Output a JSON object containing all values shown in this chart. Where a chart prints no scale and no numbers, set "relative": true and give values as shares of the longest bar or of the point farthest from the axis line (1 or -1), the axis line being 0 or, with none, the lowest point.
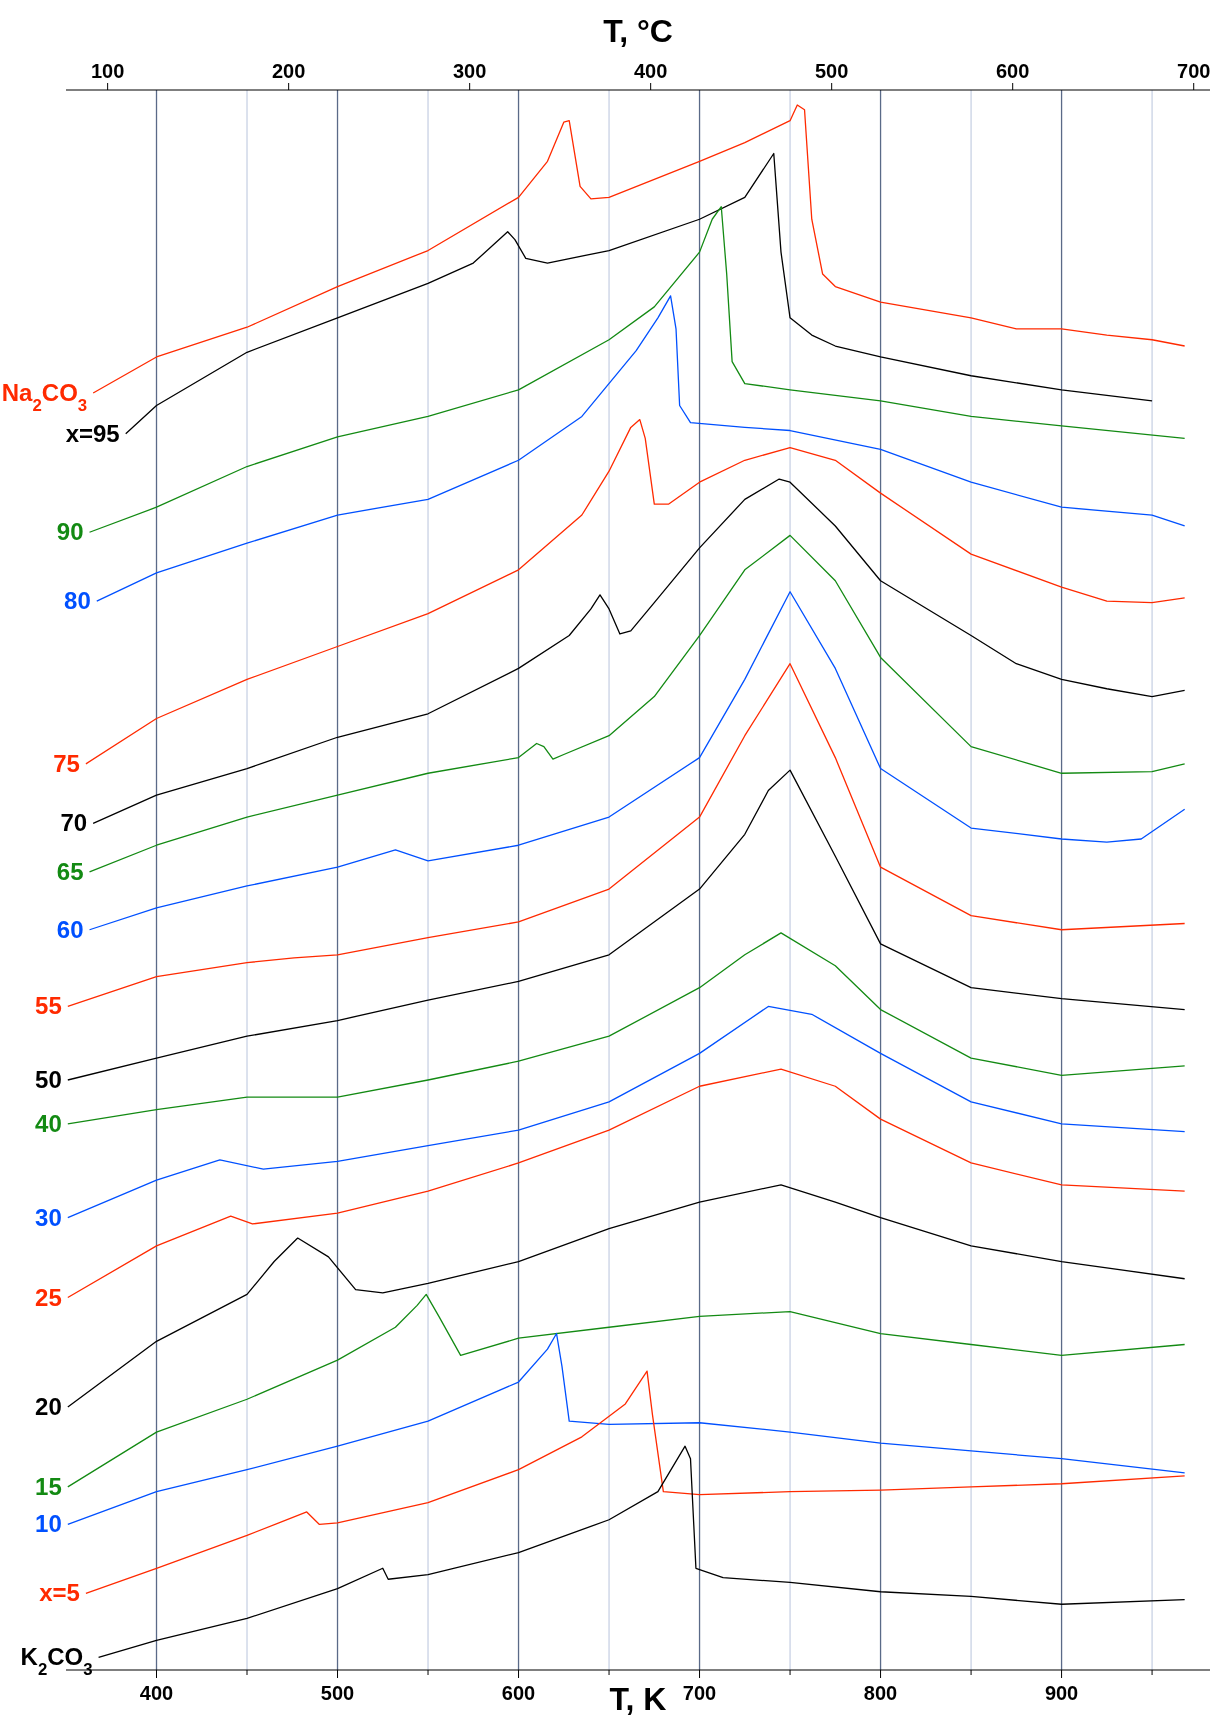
{
  "chart_data": {
    "type": "line",
    "relative": true,
    "xlabel": "T, K",
    "x2label": "T, °C",
    "xlim": [
      350,
      982
    ],
    "xticks": [
      400,
      {
        "value": 450,
        "label": null
      },
      500,
      {
        "value": 550,
        "label": null
      },
      600,
      {
        "value": 650,
        "label": null
      },
      700,
      {
        "value": 750,
        "label": null
      },
      800,
      {
        "value": 850,
        "label": null
      },
      900,
      {
        "value": 950,
        "label": null
      }
    ],
    "x2lim": [
      77,
      709
    ],
    "x2ticks": [
      100,
      200,
      300,
      400,
      500,
      600,
      700
    ],
    "grid": "x",
    "series": [
      {
        "name": "Na$_{2}$CO$_{3}$",
        "color": "#ff2a00",
        "x": [
          365,
          400,
          450,
          500,
          550,
          600,
          616,
          625,
          628,
          634,
          640,
          650,
          700,
          725,
          750,
          754,
          758,
          762,
          768,
          775,
          800,
          850,
          875,
          900,
          925,
          950,
          968
        ],
        "values": [
          0.816,
          0.839,
          0.858,
          0.884,
          0.907,
          0.941,
          0.964,
          0.989,
          0.99,
          0.948,
          0.94,
          0.941,
          0.964,
          0.976,
          0.99,
          1.0,
          0.997,
          0.927,
          0.892,
          0.884,
          0.874,
          0.864,
          0.857,
          0.857,
          0.853,
          0.85,
          0.846
        ]
      },
      {
        "name": "x=95",
        "color": "#000000",
        "x": [
          383,
          400,
          450,
          500,
          550,
          575,
          594,
          598,
          604,
          616,
          650,
          700,
          725,
          741,
          745,
          750,
          762,
          775,
          800,
          850,
          900,
          950
        ],
        "values": [
          0.79,
          0.808,
          0.842,
          0.864,
          0.886,
          0.899,
          0.919,
          0.914,
          0.902,
          0.899,
          0.907,
          0.927,
          0.941,
          0.969,
          0.906,
          0.864,
          0.853,
          0.846,
          0.839,
          0.827,
          0.818,
          0.811
        ]
      },
      {
        "name": "90",
        "color": "#138a13",
        "x": [
          363,
          400,
          450,
          500,
          550,
          600,
          650,
          675,
          700,
          707,
          712,
          715,
          718,
          725,
          750,
          800,
          850,
          900,
          968
        ],
        "values": [
          0.727,
          0.743,
          0.769,
          0.788,
          0.801,
          0.818,
          0.85,
          0.871,
          0.906,
          0.927,
          0.935,
          0.892,
          0.836,
          0.822,
          0.818,
          0.811,
          0.801,
          0.795,
          0.787
        ]
      },
      {
        "name": "80",
        "color": "#0050ff",
        "x": [
          367,
          400,
          450,
          500,
          550,
          600,
          635,
          665,
          677,
          684,
          687,
          689,
          695,
          725,
          750,
          800,
          850,
          900,
          950,
          968
        ],
        "values": [
          0.683,
          0.701,
          0.72,
          0.738,
          0.748,
          0.773,
          0.801,
          0.843,
          0.864,
          0.878,
          0.857,
          0.808,
          0.797,
          0.794,
          0.792,
          0.78,
          0.759,
          0.743,
          0.738,
          0.731
        ]
      },
      {
        "name": "75",
        "color": "#ff2a00",
        "x": [
          361,
          400,
          450,
          500,
          550,
          600,
          635,
          650,
          662,
          667,
          670,
          675,
          683,
          700,
          725,
          750,
          775,
          800,
          850,
          900,
          925,
          950,
          968
        ],
        "values": [
          0.579,
          0.608,
          0.633,
          0.654,
          0.675,
          0.703,
          0.738,
          0.766,
          0.794,
          0.799,
          0.787,
          0.745,
          0.745,
          0.759,
          0.773,
          0.781,
          0.773,
          0.752,
          0.713,
          0.692,
          0.683,
          0.682,
          0.685
        ]
      },
      {
        "name": "70",
        "color": "#000000",
        "x": [
          365,
          400,
          450,
          500,
          550,
          600,
          628,
          640,
          645,
          650,
          656,
          662,
          675,
          700,
          725,
          744,
          750,
          775,
          800,
          850,
          875,
          900,
          925,
          950,
          968
        ],
        "values": [
          0.541,
          0.559,
          0.576,
          0.596,
          0.611,
          0.64,
          0.661,
          0.678,
          0.687,
          0.678,
          0.662,
          0.664,
          0.682,
          0.717,
          0.748,
          0.761,
          0.759,
          0.731,
          0.696,
          0.661,
          0.643,
          0.633,
          0.627,
          0.622,
          0.626
        ]
      },
      {
        "name": "65",
        "color": "#138a13",
        "x": [
          363,
          400,
          450,
          500,
          550,
          600,
          610,
          614,
          619,
          625,
          650,
          675,
          700,
          725,
          750,
          775,
          800,
          850,
          900,
          950,
          968
        ],
        "values": [
          0.51,
          0.527,
          0.545,
          0.559,
          0.573,
          0.583,
          0.592,
          0.59,
          0.582,
          0.585,
          0.597,
          0.622,
          0.661,
          0.703,
          0.725,
          0.696,
          0.647,
          0.59,
          0.573,
          0.574,
          0.579
        ]
      },
      {
        "name": "60",
        "color": "#0050ff",
        "x": [
          363,
          400,
          450,
          500,
          532,
          550,
          600,
          650,
          700,
          725,
          750,
          775,
          800,
          850,
          900,
          925,
          944,
          968
        ],
        "values": [
          0.473,
          0.487,
          0.501,
          0.513,
          0.524,
          0.517,
          0.527,
          0.545,
          0.583,
          0.633,
          0.689,
          0.64,
          0.576,
          0.538,
          0.531,
          0.529,
          0.531,
          0.55
        ]
      },
      {
        "name": "55",
        "color": "#ff2a00",
        "x": [
          351,
          400,
          450,
          476,
          500,
          550,
          600,
          650,
          700,
          725,
          750,
          775,
          800,
          850,
          900,
          968
        ],
        "values": [
          0.424,
          0.443,
          0.452,
          0.455,
          0.457,
          0.468,
          0.478,
          0.499,
          0.545,
          0.597,
          0.643,
          0.583,
          0.513,
          0.482,
          0.473,
          0.477
        ]
      },
      {
        "name": "50",
        "color": "#000000",
        "x": [
          351,
          400,
          450,
          500,
          550,
          600,
          650,
          700,
          725,
          738,
          750,
          775,
          800,
          850,
          900,
          968
        ],
        "values": [
          0.377,
          0.391,
          0.405,
          0.415,
          0.428,
          0.44,
          0.457,
          0.499,
          0.534,
          0.562,
          0.575,
          0.52,
          0.464,
          0.436,
          0.429,
          0.422
        ]
      },
      {
        "name": "40",
        "color": "#138a13",
        "x": [
          351,
          400,
          450,
          500,
          550,
          600,
          650,
          700,
          725,
          745,
          775,
          800,
          850,
          900,
          968
        ],
        "values": [
          0.349,
          0.358,
          0.366,
          0.366,
          0.377,
          0.389,
          0.405,
          0.436,
          0.457,
          0.471,
          0.45,
          0.422,
          0.391,
          0.38,
          0.386
        ]
      },
      {
        "name": "30",
        "color": "#0050ff",
        "x": [
          351,
          400,
          435,
          459,
          500,
          550,
          600,
          650,
          700,
          738,
          762,
          800,
          850,
          900,
          968
        ],
        "values": [
          0.289,
          0.313,
          0.326,
          0.32,
          0.325,
          0.335,
          0.345,
          0.363,
          0.394,
          0.424,
          0.419,
          0.394,
          0.363,
          0.349,
          0.344
        ]
      },
      {
        "name": "25",
        "color": "#ff2a00",
        "x": [
          351,
          400,
          441,
          453,
          500,
          550,
          600,
          650,
          700,
          745,
          775,
          800,
          850,
          900,
          968
        ],
        "values": [
          0.238,
          0.271,
          0.29,
          0.285,
          0.292,
          0.306,
          0.324,
          0.345,
          0.373,
          0.384,
          0.373,
          0.352,
          0.324,
          0.31,
          0.306
        ]
      },
      {
        "name": "20",
        "color": "#000000",
        "x": [
          351,
          400,
          450,
          465,
          478,
          495,
          510,
          525,
          550,
          600,
          650,
          700,
          745,
          775,
          800,
          850,
          900,
          968
        ],
        "values": [
          0.168,
          0.21,
          0.24,
          0.261,
          0.276,
          0.264,
          0.243,
          0.241,
          0.247,
          0.261,
          0.282,
          0.299,
          0.31,
          0.299,
          0.289,
          0.271,
          0.261,
          0.25
        ]
      },
      {
        "name": "15",
        "color": "#138a13",
        "x": [
          351,
          400,
          450,
          500,
          532,
          544,
          549,
          556,
          568,
          600,
          650,
          700,
          750,
          800,
          850,
          900,
          968
        ],
        "values": [
          0.117,
          0.152,
          0.173,
          0.198,
          0.219,
          0.233,
          0.24,
          0.226,
          0.201,
          0.212,
          0.219,
          0.226,
          0.229,
          0.215,
          0.208,
          0.201,
          0.208
        ]
      },
      {
        "name": "10",
        "color": "#0050ff",
        "x": [
          351,
          400,
          450,
          500,
          550,
          600,
          616,
          621,
          624,
          628,
          650,
          700,
          750,
          800,
          850,
          900,
          968
        ],
        "values": [
          0.093,
          0.114,
          0.128,
          0.143,
          0.159,
          0.184,
          0.205,
          0.215,
          0.194,
          0.159,
          0.157,
          0.158,
          0.152,
          0.145,
          0.14,
          0.135,
          0.126
        ]
      },
      {
        "name": "x=5",
        "color": "#ff2a00",
        "x": [
          361,
          400,
          450,
          483,
          490,
          500,
          550,
          600,
          635,
          659,
          671,
          674,
          680,
          700,
          750,
          800,
          850,
          900,
          968
        ],
        "values": [
          0.049,
          0.065,
          0.086,
          0.101,
          0.093,
          0.094,
          0.107,
          0.128,
          0.149,
          0.17,
          0.191,
          0.163,
          0.114,
          0.112,
          0.114,
          0.115,
          0.117,
          0.119,
          0.124
        ]
      },
      {
        "name": "K$_{2}$CO$_{3}$",
        "color": "#000000",
        "x": [
          368,
          400,
          450,
          500,
          525,
          528,
          550,
          600,
          650,
          677,
          692,
          695,
          698,
          713,
          750,
          800,
          850,
          900,
          968
        ],
        "values": [
          0.008,
          0.019,
          0.033,
          0.052,
          0.065,
          0.058,
          0.061,
          0.075,
          0.096,
          0.114,
          0.143,
          0.135,
          0.065,
          0.059,
          0.056,
          0.05,
          0.047,
          0.042,
          0.045
        ]
      }
    ]
  }
}
